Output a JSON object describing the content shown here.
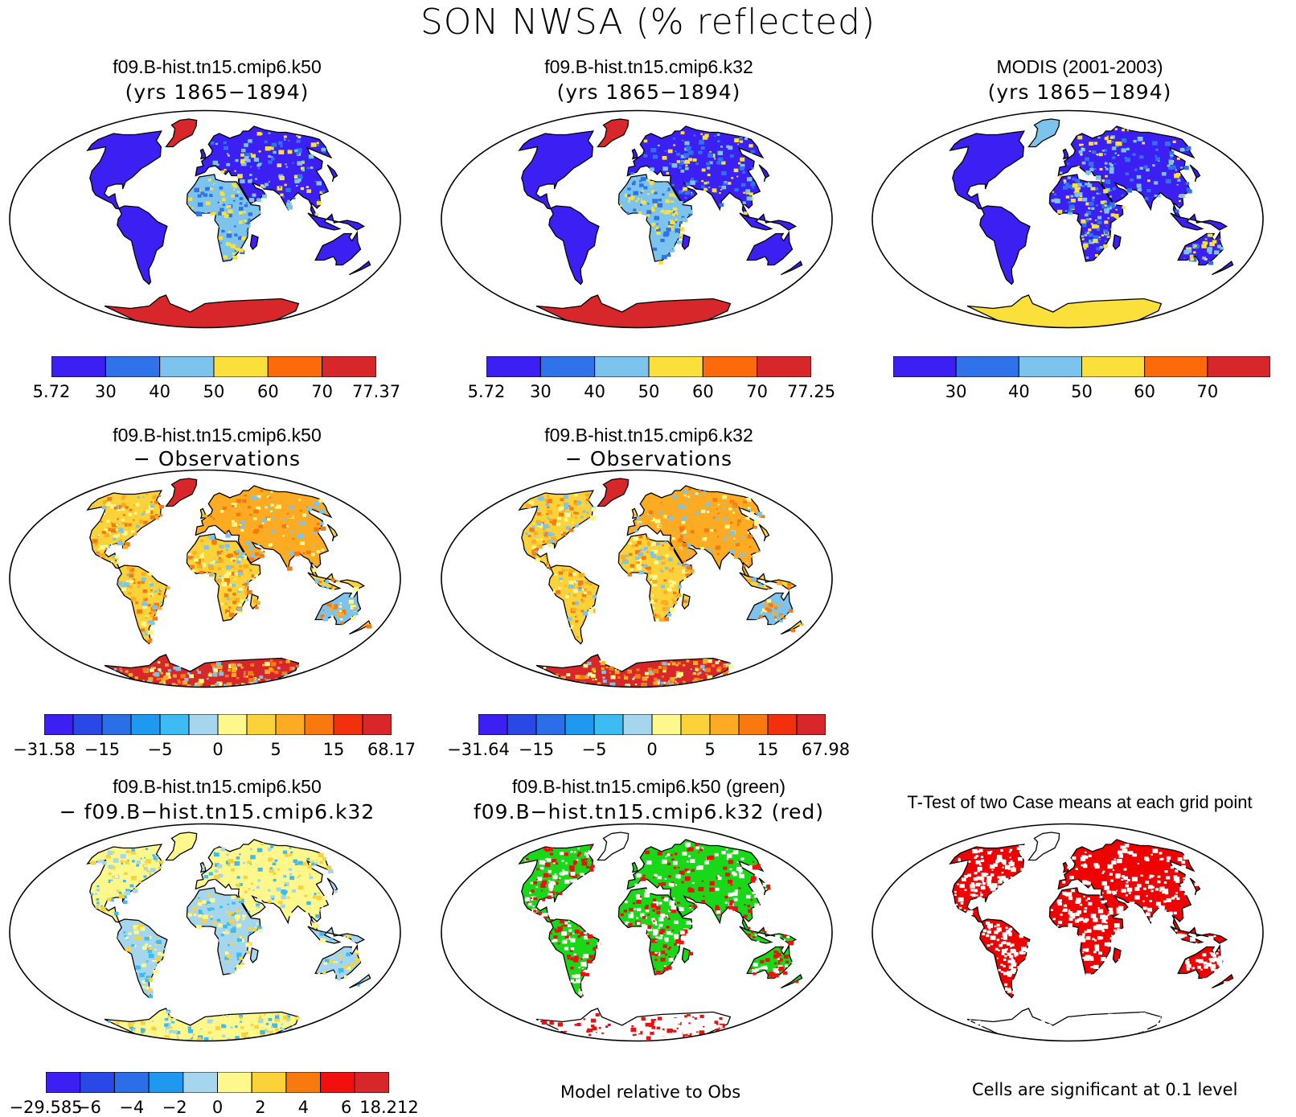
{
  "title": "SON NWSA (% reflected)",
  "panels": [
    {
      "line1": "f09.B-hist.tn15.cmip6.k50",
      "line2": "(yrs 1865−1894)",
      "style": "abs_k50"
    },
    {
      "line1": "f09.B-hist.tn15.cmip6.k32",
      "line2": "(yrs 1865−1894)",
      "style": "abs_k32"
    },
    {
      "line1": "MODIS (2001-2003)",
      "line2": "(yrs 1865−1894)",
      "style": "obs"
    },
    {
      "line1": "f09.B-hist.tn15.cmip6.k50",
      "line2": "− Observations",
      "style": "bias"
    },
    {
      "line1": "f09.B-hist.tn15.cmip6.k32",
      "line2": "− Observations",
      "style": "bias"
    },
    {
      "line1": "f09.B-hist.tn15.cmip6.k50",
      "line2": "− f09.B−hist.tn15.cmip6.k32",
      "style": "diff"
    },
    {
      "line1": "f09.B-hist.tn15.cmip6.k50 (green)",
      "line2": "f09.B−hist.tn15.cmip6.k32 (red)",
      "style": "greenred"
    },
    {
      "line1": "T-Test of two Case means at each grid point",
      "line2": "",
      "style": "ttest"
    }
  ],
  "colorbars": [
    {
      "colors": [
        "#3c1ff2",
        "#2f72ea",
        "#7cc4ee",
        "#fbe03b",
        "#fd6a0c",
        "#d8272b"
      ],
      "labels": [
        "5.72",
        "30",
        "40",
        "50",
        "60",
        "70",
        "77.37"
      ]
    },
    {
      "colors": [
        "#3c1ff2",
        "#2f72ea",
        "#7cc4ee",
        "#fbe03b",
        "#fd6a0c",
        "#d8272b"
      ],
      "labels": [
        "5.72",
        "30",
        "40",
        "50",
        "60",
        "70",
        "77.25"
      ]
    },
    {
      "colors": [
        "#3c1ff2",
        "#2f72ea",
        "#7cc4ee",
        "#fbe03b",
        "#fd6a0c",
        "#d8272b"
      ],
      "labels": [
        "",
        "30",
        "40",
        "50",
        "60",
        "70",
        ""
      ]
    },
    {
      "colors": [
        "#3c1ff2",
        "#2a48e6",
        "#2a6fe8",
        "#1f98f0",
        "#3cbcf2",
        "#a6d6ee",
        "#fdf78c",
        "#fcd23a",
        "#fcab22",
        "#f87a0e",
        "#f2300e",
        "#d8272b"
      ],
      "labels": [
        "−31.58",
        "−15",
        "−5",
        "0",
        "5",
        "15",
        "68.17"
      ]
    },
    {
      "colors": [
        "#3c1ff2",
        "#2a48e6",
        "#2a6fe8",
        "#1f98f0",
        "#3cbcf2",
        "#a6d6ee",
        "#fdf78c",
        "#fcd23a",
        "#fcab22",
        "#f87a0e",
        "#f2300e",
        "#d8272b"
      ],
      "labels": [
        "−31.64",
        "−15",
        "−5",
        "0",
        "5",
        "15",
        "67.98"
      ]
    },
    {
      "colors": [
        "#3c1ff2",
        "#2a48e6",
        "#2a6fe8",
        "#1f98f0",
        "#a6d6ee",
        "#fdf78c",
        "#fcd23a",
        "#f87a0e",
        "#f2100e",
        "#d8272b"
      ],
      "labels": [
        "−29.585",
        "−6",
        "−4",
        "−2",
        "0",
        "2",
        "4",
        "6",
        "18.212"
      ]
    }
  ],
  "notes": {
    "center": "Model relative to Obs",
    "right": "Cells are significant at 0.1 level"
  }
}
